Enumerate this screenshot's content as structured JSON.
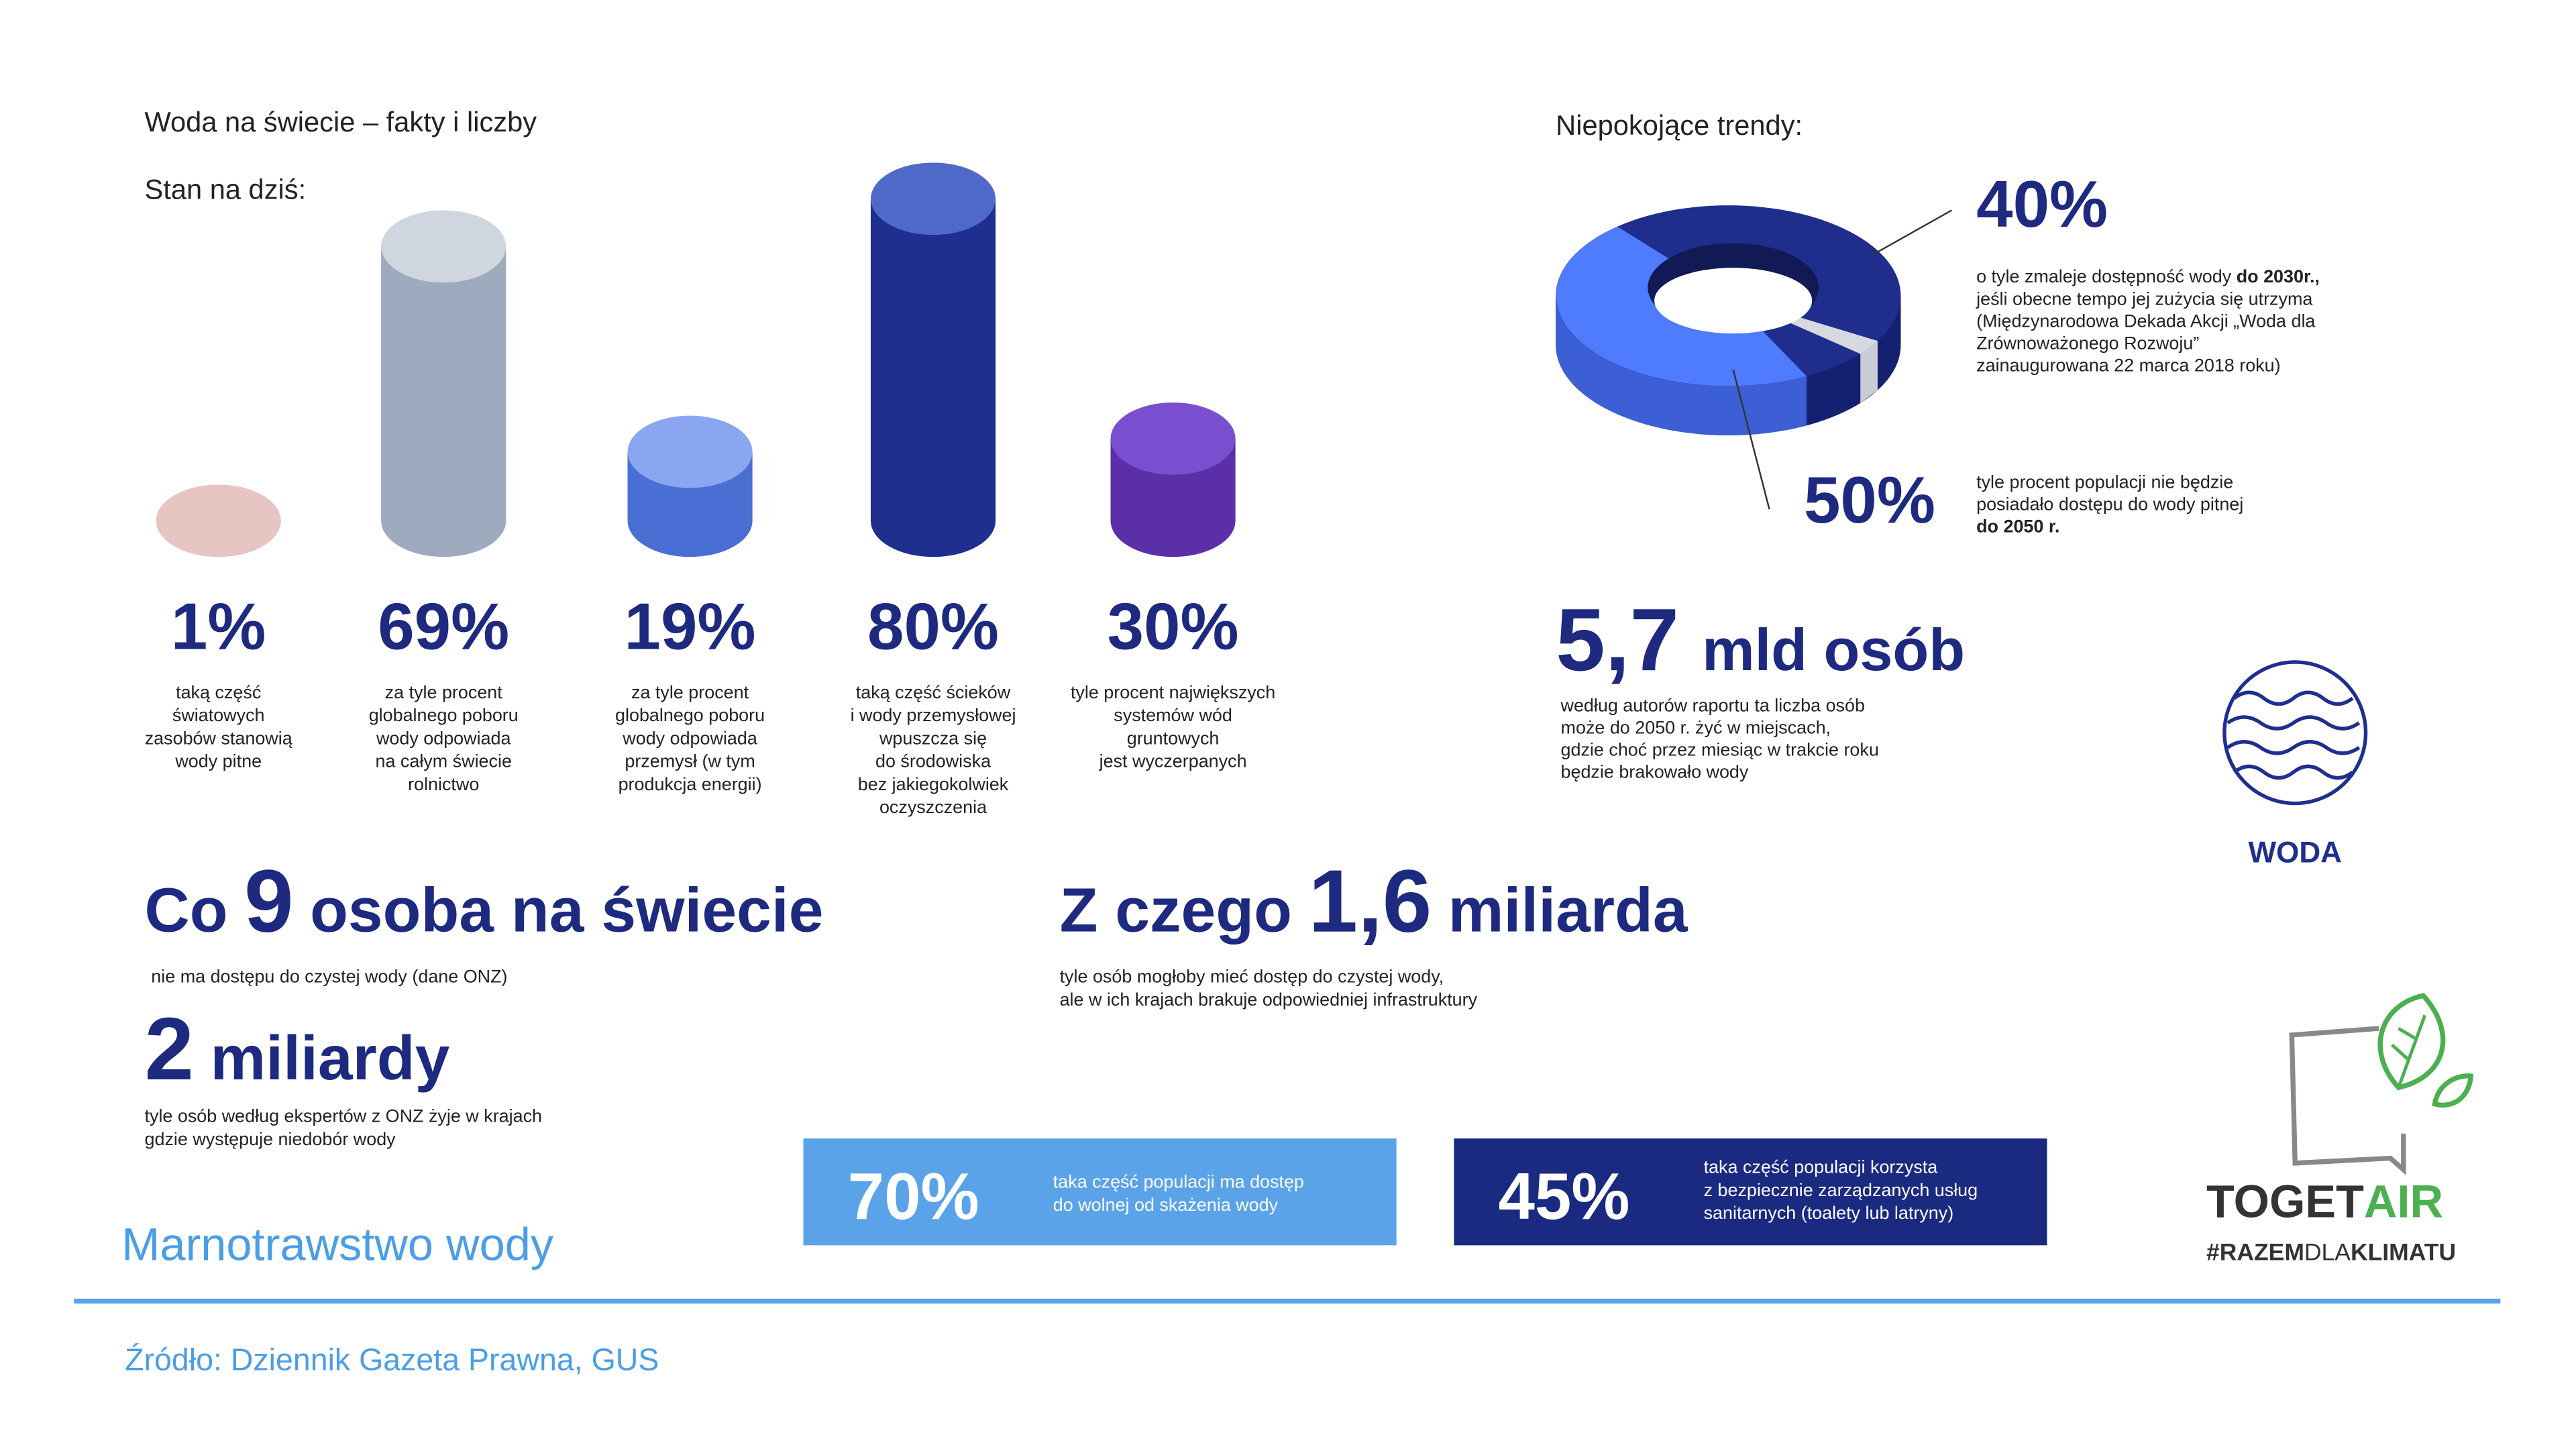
{
  "header": {
    "title": "Woda na świecie – fakty i liczby",
    "subtitle": "Stan na dziś:"
  },
  "stats": [
    {
      "value": "1%",
      "lines": [
        "taką część",
        "światowych",
        "zasobów stanowią",
        "wody pitne"
      ]
    },
    {
      "value": "69%",
      "lines": [
        "za tyle procent",
        "globalnego poboru",
        "wody odpowiada",
        "na całym świecie",
        "rolnictwo"
      ]
    },
    {
      "value": "19%",
      "lines": [
        "za tyle procent",
        "globalnego poboru",
        "wody odpowiada",
        "przemysł (w tym",
        "produkcja energii)"
      ]
    },
    {
      "value": "80%",
      "lines": [
        "taką część ścieków",
        "i wody przemysłowej",
        "wpuszcza się",
        "do środowiska",
        "bez jakiegokolwiek",
        "oczyszczenia"
      ]
    },
    {
      "value": "30%",
      "lines": [
        "tyle procent największych",
        "systemów wód",
        "gruntowych",
        "jest wyczerpanych"
      ]
    }
  ],
  "trends": {
    "title": "Niepokojące trendy:",
    "items": [
      {
        "value": "40%",
        "lines": [
          [
            "o tyle zmaleje dostępność wody ",
            "do 2030r.,"
          ],
          [
            "jeśli obecne tempo jej zużycia się utrzyma"
          ],
          [
            "(Międzynarodowa Dekada Akcji „Woda dla"
          ],
          [
            "Zrównoważonego Rozwoju”"
          ],
          [
            "zainaugurowana 22 marca 2018 roku)"
          ]
        ]
      },
      {
        "value": "50%",
        "lines": [
          [
            "tyle procent populacji nie będzie"
          ],
          [
            "posiadało dostępu do wody pitnej"
          ],
          [
            "",
            "do 2050 r."
          ]
        ]
      }
    ],
    "big": {
      "number": "5,7",
      "unit": "mld osób",
      "lines": [
        "według autorów raportu ta liczba osób",
        "może do 2050 r. żyć w miejscach,",
        "gdzie choć przez miesiąc w trakcie roku",
        "będzie brakowało wody"
      ]
    }
  },
  "facts": [
    {
      "pre": "Co",
      "number": "9",
      "post": "osoba na świecie",
      "lines": [
        "nie ma dostępu do czystej wody (dane ONZ)"
      ]
    },
    {
      "pre": "",
      "number": "2",
      "post": "miliardy",
      "lines": [
        "tyle osób według ekspertów z ONZ żyje w krajach",
        "gdzie występuje niedobór wody"
      ]
    },
    {
      "pre": "Z czego",
      "number": "1,6",
      "post": "miliarda",
      "lines": [
        "tyle osób mogłoby mieć dostęp do czystej wody,",
        "ale w ich krajach brakuje odpowiedniej infrastruktury"
      ]
    }
  ],
  "boxes": [
    {
      "value": "70%",
      "lines": [
        "taka część populacji ma dostęp",
        "do wolnej od skażenia wody"
      ]
    },
    {
      "value": "45%",
      "lines": [
        "taka część populacji korzysta",
        "z bezpiecznie zarządzanych usług",
        "sanitarnych (toalety lub latryny)"
      ]
    }
  ],
  "icon_label": "WODA",
  "logo": {
    "name": [
      "TOGET",
      "AIR"
    ],
    "tag": [
      "#RAZEM",
      "DLA",
      "KLIMATU"
    ]
  },
  "footer": {
    "section": "Marnotrawstwo wody",
    "source": "Źródło: Dziennik Gazeta Prawna, GUS"
  }
}
